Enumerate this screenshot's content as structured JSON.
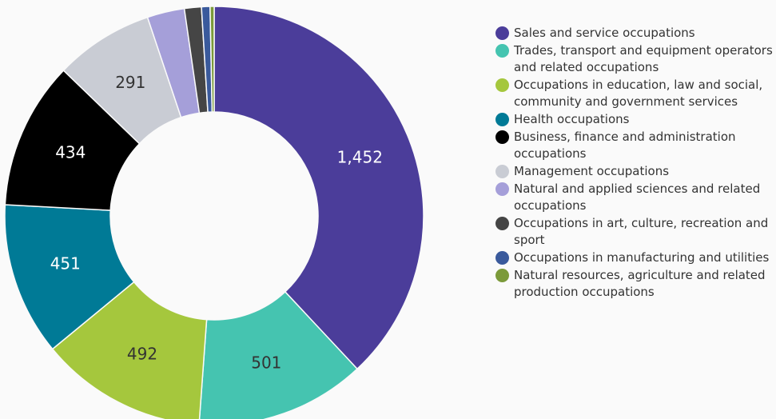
{
  "chart_data": {
    "type": "donut",
    "categories": [
      "Sales and service occupations",
      "Trades, transport and equipment operators and related occupations",
      "Occupations in education, law and social, community and government services",
      "Health occupations",
      "Business, finance and administration occupations",
      "Management occupations",
      "Natural and applied sciences and related occupations",
      "Occupations in art, culture, recreation and sport",
      "Occupations in manufacturing and utilities",
      "Natural resources, agriculture and related production occupations"
    ],
    "values": [
      1452,
      501,
      492,
      451,
      434,
      291,
      110,
      50,
      25,
      12
    ],
    "value_labels": [
      "1,452",
      "501",
      "492",
      "451",
      "434",
      "291",
      null,
      null,
      null,
      null
    ],
    "colors": [
      "#4b3d9a",
      "#45c4b0",
      "#a5c73d",
      "#007a96",
      "#000000",
      "#c9ccd4",
      "#a59fd9",
      "#454545",
      "#3a5a9c",
      "#7b9a3a"
    ],
    "legend": "right"
  }
}
